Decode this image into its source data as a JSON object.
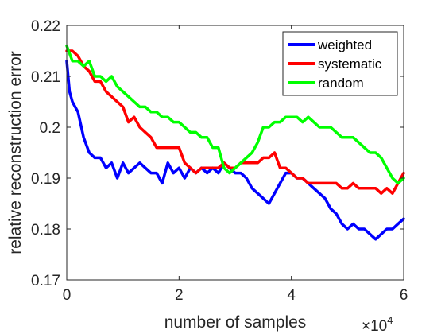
{
  "chart_data": {
    "type": "line",
    "xlabel": "number of samples",
    "ylabel": "relative reconstruction error",
    "x_multiplier_label": "×10",
    "x_multiplier_exponent": "4",
    "xlim": [
      0,
      6
    ],
    "ylim": [
      0.17,
      0.22
    ],
    "xticks": [
      0,
      2,
      4,
      6
    ],
    "xtick_labels": [
      "0",
      "2",
      "4",
      "6"
    ],
    "yticks": [
      0.17,
      0.18,
      0.19,
      0.2,
      0.21,
      0.22
    ],
    "ytick_labels": [
      "0.17",
      "0.18",
      "0.19",
      "0.2",
      "0.21",
      "0.22"
    ],
    "grid": false,
    "legend_position": "top-right",
    "series": [
      {
        "name": "weighted",
        "color": "#0000ff",
        "x": [
          0,
          0.05,
          0.1,
          0.2,
          0.3,
          0.4,
          0.5,
          0.6,
          0.7,
          0.8,
          0.9,
          1.0,
          1.1,
          1.2,
          1.3,
          1.4,
          1.5,
          1.6,
          1.7,
          1.8,
          1.9,
          2.0,
          2.1,
          2.2,
          2.3,
          2.4,
          2.5,
          2.6,
          2.7,
          2.8,
          2.9,
          3.0,
          3.1,
          3.2,
          3.3,
          3.4,
          3.5,
          3.6,
          3.7,
          3.8,
          3.9,
          4.0,
          4.1,
          4.2,
          4.3,
          4.4,
          4.5,
          4.6,
          4.7,
          4.8,
          4.9,
          5.0,
          5.1,
          5.2,
          5.3,
          5.4,
          5.5,
          5.6,
          5.7,
          5.8,
          5.9,
          6.0
        ],
        "y": [
          0.213,
          0.207,
          0.205,
          0.203,
          0.198,
          0.195,
          0.194,
          0.194,
          0.192,
          0.193,
          0.19,
          0.193,
          0.191,
          0.192,
          0.193,
          0.192,
          0.191,
          0.191,
          0.189,
          0.193,
          0.191,
          0.192,
          0.19,
          0.192,
          0.191,
          0.192,
          0.191,
          0.192,
          0.191,
          0.193,
          0.192,
          0.191,
          0.191,
          0.19,
          0.188,
          0.187,
          0.186,
          0.185,
          0.187,
          0.189,
          0.191,
          0.191,
          0.19,
          0.19,
          0.189,
          0.188,
          0.187,
          0.186,
          0.184,
          0.183,
          0.181,
          0.18,
          0.181,
          0.18,
          0.18,
          0.179,
          0.178,
          0.179,
          0.18,
          0.18,
          0.181,
          0.182
        ]
      },
      {
        "name": "systematic",
        "color": "#ff0000",
        "x": [
          0,
          0.1,
          0.2,
          0.3,
          0.4,
          0.5,
          0.6,
          0.7,
          0.8,
          0.9,
          1.0,
          1.1,
          1.2,
          1.3,
          1.4,
          1.5,
          1.6,
          1.7,
          1.8,
          1.9,
          2.0,
          2.1,
          2.2,
          2.3,
          2.4,
          2.5,
          2.6,
          2.7,
          2.8,
          2.9,
          3.0,
          3.1,
          3.2,
          3.3,
          3.4,
          3.5,
          3.6,
          3.7,
          3.8,
          3.9,
          4.0,
          4.1,
          4.2,
          4.3,
          4.4,
          4.5,
          4.6,
          4.7,
          4.8,
          4.9,
          5.0,
          5.1,
          5.2,
          5.3,
          5.4,
          5.5,
          5.6,
          5.7,
          5.8,
          5.9,
          6.0
        ],
        "y": [
          0.215,
          0.215,
          0.214,
          0.212,
          0.211,
          0.209,
          0.209,
          0.207,
          0.206,
          0.205,
          0.204,
          0.201,
          0.202,
          0.2,
          0.199,
          0.198,
          0.196,
          0.196,
          0.196,
          0.196,
          0.196,
          0.193,
          0.192,
          0.191,
          0.192,
          0.192,
          0.192,
          0.192,
          0.193,
          0.192,
          0.192,
          0.193,
          0.193,
          0.193,
          0.193,
          0.194,
          0.194,
          0.195,
          0.192,
          0.192,
          0.191,
          0.19,
          0.19,
          0.189,
          0.189,
          0.189,
          0.189,
          0.189,
          0.189,
          0.188,
          0.188,
          0.189,
          0.188,
          0.188,
          0.188,
          0.188,
          0.187,
          0.188,
          0.187,
          0.189,
          0.191
        ]
      },
      {
        "name": "random",
        "color": "#00ff00",
        "x": [
          0,
          0.1,
          0.2,
          0.3,
          0.4,
          0.5,
          0.6,
          0.7,
          0.8,
          0.9,
          1.0,
          1.1,
          1.2,
          1.3,
          1.4,
          1.5,
          1.6,
          1.7,
          1.8,
          1.9,
          2.0,
          2.1,
          2.2,
          2.3,
          2.4,
          2.5,
          2.6,
          2.7,
          2.8,
          2.9,
          3.0,
          3.1,
          3.2,
          3.3,
          3.4,
          3.5,
          3.6,
          3.7,
          3.8,
          3.9,
          4.0,
          4.1,
          4.2,
          4.3,
          4.4,
          4.5,
          4.6,
          4.7,
          4.8,
          4.9,
          5.0,
          5.1,
          5.2,
          5.3,
          5.4,
          5.5,
          5.6,
          5.7,
          5.8,
          5.9,
          6.0
        ],
        "y": [
          0.216,
          0.213,
          0.213,
          0.212,
          0.213,
          0.21,
          0.21,
          0.209,
          0.21,
          0.208,
          0.207,
          0.206,
          0.205,
          0.204,
          0.204,
          0.203,
          0.203,
          0.202,
          0.202,
          0.201,
          0.201,
          0.2,
          0.199,
          0.199,
          0.198,
          0.198,
          0.196,
          0.196,
          0.192,
          0.191,
          0.192,
          0.193,
          0.194,
          0.195,
          0.197,
          0.2,
          0.2,
          0.201,
          0.201,
          0.202,
          0.202,
          0.202,
          0.201,
          0.202,
          0.201,
          0.2,
          0.2,
          0.2,
          0.199,
          0.198,
          0.198,
          0.198,
          0.197,
          0.196,
          0.195,
          0.195,
          0.194,
          0.192,
          0.19,
          0.189,
          0.19
        ]
      }
    ]
  }
}
